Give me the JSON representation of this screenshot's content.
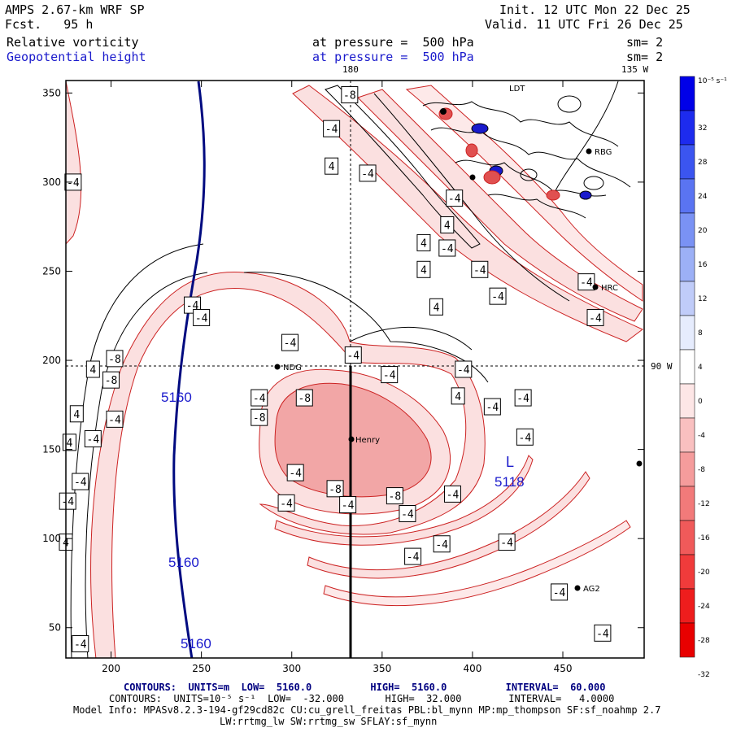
{
  "header": {
    "model": "AMPS 2.67-km WRF SP",
    "fcst_label": "Fcst.",
    "fcst_value": "95 h",
    "init": "Init. 12 UTC Mon 22 Dec 25",
    "valid": "Valid. 11 UTC Fri 26 Dec 25",
    "field1": "Relative vorticity",
    "field2": "Geopotential height",
    "pressure1": "at pressure =  500 hPa",
    "pressure2": "at pressure =  500 hPa",
    "sm1": "sm= 2",
    "sm2": "sm= 2"
  },
  "map": {
    "lon_top_180": "180",
    "lon_top_135w": "135 W",
    "lon_right_90w": "90 W",
    "stations": [
      "NDG",
      "Henry",
      "RBG",
      "HRC",
      "AG2",
      "LDT"
    ],
    "low_label": "L",
    "low_value": "5118",
    "height_labels": [
      "5160",
      "5160",
      "5160"
    ]
  },
  "colors": {
    "height_contour": "#000a80",
    "positive_line": "#000000",
    "negative_line": "#cc2222",
    "negative_fill_light": "#fbe0e0",
    "negative_fill_mid": "#f2a6a6",
    "frame": "#000000"
  },
  "colorbar": {
    "unit": "10⁻⁵ s⁻¹",
    "labels": [
      "32",
      "28",
      "24",
      "20",
      "16",
      "12",
      "8",
      "4",
      "0",
      "-4",
      "-8",
      "-12",
      "-16",
      "-20",
      "-24",
      "-28",
      "-32"
    ],
    "colors": [
      "#0000e8",
      "#1d2bee",
      "#3b55f0",
      "#5a74f2",
      "#7a92f4",
      "#9cb0f6",
      "#c0ccf9",
      "#e6ecfd",
      "#ffffff",
      "#fde6e6",
      "#f9c0c0",
      "#f59c9c",
      "#f27a7a",
      "#f05a5a",
      "#f03b3b",
      "#ee1d1d",
      "#e80000"
    ]
  },
  "chart_data": {
    "type": "contour-map",
    "title": "Relative vorticity / Geopotential height at 500 hPa",
    "x_ticks": [
      200,
      250,
      300,
      350,
      400,
      450
    ],
    "y_ticks": [
      50,
      100,
      150,
      200,
      250,
      300,
      350
    ],
    "xlim": [
      175,
      495
    ],
    "ylim": [
      33,
      357
    ],
    "contour_value_labels": [
      {
        "text": "-8",
        "x": 332,
        "y": 349
      },
      {
        "text": "-4",
        "x": 322,
        "y": 330
      },
      {
        "text": "4",
        "x": 322,
        "y": 309
      },
      {
        "text": "-4",
        "x": 342,
        "y": 305
      },
      {
        "text": "-4",
        "x": 390,
        "y": 291
      },
      {
        "text": "4",
        "x": 386,
        "y": 276
      },
      {
        "text": "4",
        "x": 373,
        "y": 266
      },
      {
        "text": "-4",
        "x": 386,
        "y": 263
      },
      {
        "text": "4",
        "x": 373,
        "y": 251
      },
      {
        "text": "-4",
        "x": 404,
        "y": 251
      },
      {
        "text": "-4",
        "x": 414,
        "y": 236
      },
      {
        "text": "-4",
        "x": 463,
        "y": 244
      },
      {
        "text": "-4",
        "x": 468,
        "y": 224
      },
      {
        "text": "-4",
        "x": 179,
        "y": 300
      },
      {
        "text": "4",
        "x": 190,
        "y": 195
      },
      {
        "text": "4",
        "x": 181,
        "y": 170
      },
      {
        "text": "4",
        "x": 177,
        "y": 154
      },
      {
        "text": "4",
        "x": 175,
        "y": 98
      },
      {
        "text": "-4",
        "x": 245,
        "y": 231
      },
      {
        "text": "-4",
        "x": 250,
        "y": 224
      },
      {
        "text": "-4",
        "x": 299,
        "y": 210
      },
      {
        "text": "-4",
        "x": 334,
        "y": 203
      },
      {
        "text": "4",
        "x": 380,
        "y": 230
      },
      {
        "text": "-4",
        "x": 395,
        "y": 195
      },
      {
        "text": "4",
        "x": 392,
        "y": 180
      },
      {
        "text": "-4",
        "x": 411,
        "y": 174
      },
      {
        "text": "-4",
        "x": 428,
        "y": 179
      },
      {
        "text": "-4",
        "x": 429,
        "y": 157
      },
      {
        "text": "-8",
        "x": 202,
        "y": 201
      },
      {
        "text": "-8",
        "x": 200,
        "y": 189
      },
      {
        "text": "-4",
        "x": 202,
        "y": 167
      },
      {
        "text": "-4",
        "x": 190,
        "y": 156
      },
      {
        "text": "-4",
        "x": 183,
        "y": 132
      },
      {
        "text": "-4",
        "x": 176,
        "y": 121
      },
      {
        "text": "-4",
        "x": 183,
        "y": 41
      },
      {
        "text": "-4",
        "x": 282,
        "y": 179
      },
      {
        "text": "-8",
        "x": 307,
        "y": 179
      },
      {
        "text": "-8",
        "x": 282,
        "y": 168
      },
      {
        "text": "-4",
        "x": 354,
        "y": 192
      },
      {
        "text": "-4",
        "x": 302,
        "y": 137
      },
      {
        "text": "-8",
        "x": 324,
        "y": 128
      },
      {
        "text": "-8",
        "x": 357,
        "y": 124
      },
      {
        "text": "-4",
        "x": 389,
        "y": 125
      },
      {
        "text": "-4",
        "x": 297,
        "y": 120
      },
      {
        "text": "-4",
        "x": 331,
        "y": 119
      },
      {
        "text": "-4",
        "x": 364,
        "y": 114
      },
      {
        "text": "-4",
        "x": 419,
        "y": 98
      },
      {
        "text": "-4",
        "x": 383,
        "y": 97
      },
      {
        "text": "-4",
        "x": 367,
        "y": 90
      },
      {
        "text": "-4",
        "x": 448,
        "y": 70
      },
      {
        "text": "-4",
        "x": 472,
        "y": 47
      }
    ]
  },
  "footer": {
    "line1": "CONTOURS:  UNITS=m  LOW=  5160.0          HIGH=  5160.0          INTERVAL=  60.000",
    "line2": "CONTOURS:  UNITS=10⁻⁵ s⁻¹  LOW=  -32.000       HIGH=  32.000        INTERVAL=   4.0000",
    "line3": "Model Info: MPASv8.2.3-194-gf29cd82c CU:cu_grell_freitas PBL:bl_mynn MP:mp_thompson SF:sf_noahmp 2.7",
    "line4": "LW:rrtmg_lw SW:rrtmg_sw SFLAY:sf_mynn"
  }
}
